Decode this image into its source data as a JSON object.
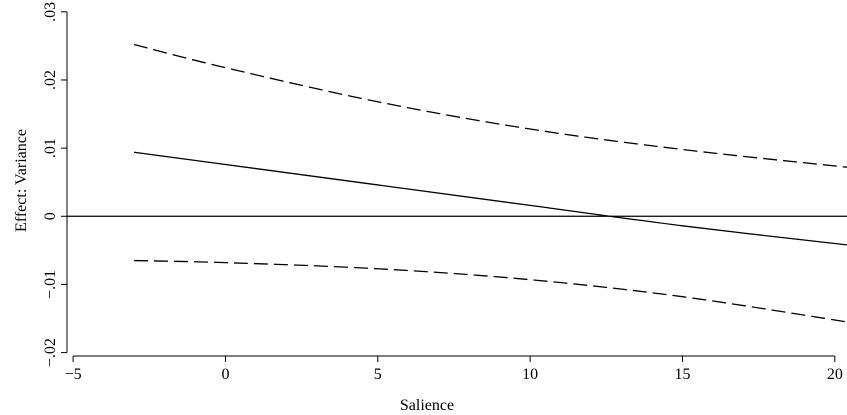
{
  "chart_data": {
    "type": "line",
    "title": "",
    "xlabel": "Salience",
    "ylabel": "Effect: Variance",
    "xlim": [
      -5.2,
      20.4
    ],
    "ylim": [
      -0.0205,
      0.031
    ],
    "xticks": [
      -5,
      0,
      5,
      10,
      15,
      20
    ],
    "xtick_labels": [
      "−5",
      "0",
      "5",
      "10",
      "15",
      "20"
    ],
    "yticks": [
      -0.02,
      -0.01,
      0,
      0.01,
      0.02,
      0.03
    ],
    "ytick_labels": [
      "−.02",
      "−.01",
      "0",
      ".01",
      ".02",
      ".03"
    ],
    "reference_line_y": 0,
    "grid": false,
    "legend": "none",
    "x": [
      -3,
      0,
      5,
      10,
      15,
      20.4
    ],
    "series": [
      {
        "values": [
          0.0252,
          0.0218,
          0.0168,
          0.0128,
          0.0098,
          0.0072
        ],
        "style": "dashed"
      },
      {
        "values": [
          0.0094,
          0.0076,
          0.0046,
          0.0016,
          -0.0014,
          -0.0042
        ],
        "style": "solid"
      },
      {
        "values": [
          -0.0065,
          -0.0068,
          -0.0077,
          -0.0093,
          -0.0118,
          -0.0155
        ],
        "style": "dashed"
      }
    ]
  }
}
